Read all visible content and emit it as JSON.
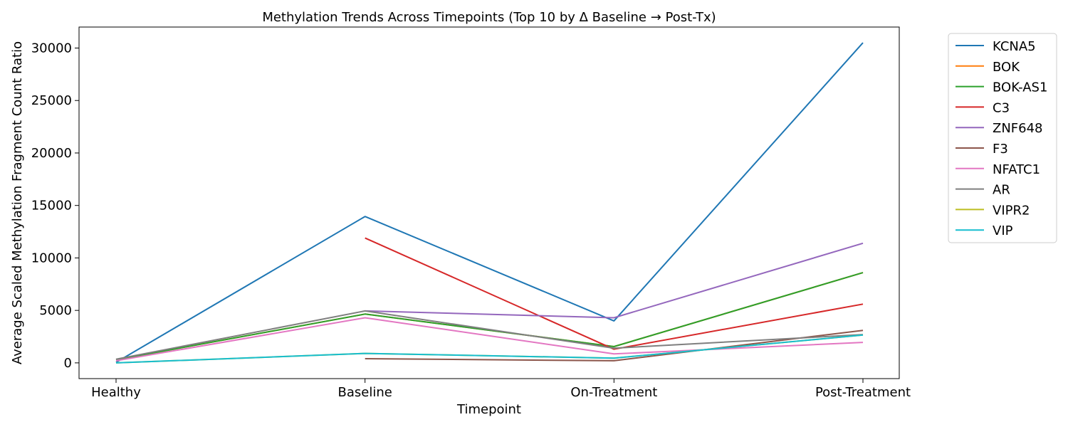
{
  "chart_data": {
    "type": "line",
    "title": "Methylation Trends Across Timepoints (Top 10 by Δ Baseline → Post-Tx)",
    "xlabel": "Timepoint",
    "ylabel": "Average Scaled Methylation Fragment Count Ratio",
    "categories": [
      "Healthy",
      "Baseline",
      "On-Treatment",
      "Post-Treatment"
    ],
    "ylim": [
      -1500,
      32000
    ],
    "yticks": [
      0,
      5000,
      10000,
      15000,
      20000,
      25000,
      30000
    ],
    "grid": false,
    "legend_position": "outside-right-top",
    "series": [
      {
        "name": "KCNA5",
        "color": "#1f77b4",
        "values": [
          50,
          13950,
          4000,
          30500
        ]
      },
      {
        "name": "BOK",
        "color": "#ff7f0e",
        "values": [
          300,
          4650,
          1550,
          8600
        ]
      },
      {
        "name": "BOK-AS1",
        "color": "#2ca02c",
        "values": [
          300,
          4650,
          1550,
          8600
        ]
      },
      {
        "name": "C3",
        "color": "#d62728",
        "values": [
          null,
          11900,
          1300,
          5600
        ]
      },
      {
        "name": "ZNF648",
        "color": "#9467bd",
        "values": [
          null,
          4950,
          4300,
          11400
        ]
      },
      {
        "name": "F3",
        "color": "#8c564b",
        "values": [
          null,
          400,
          200,
          3100
        ]
      },
      {
        "name": "NFATC1",
        "color": "#e377c2",
        "values": [
          200,
          4300,
          850,
          1950
        ]
      },
      {
        "name": "AR",
        "color": "#7f7f7f",
        "values": [
          350,
          4950,
          1400,
          2700
        ]
      },
      {
        "name": "VIPR2",
        "color": "#bcbd22",
        "values": [
          0,
          900,
          450,
          2650
        ]
      },
      {
        "name": "VIP",
        "color": "#17becf",
        "values": [
          0,
          900,
          450,
          2650
        ]
      }
    ]
  }
}
